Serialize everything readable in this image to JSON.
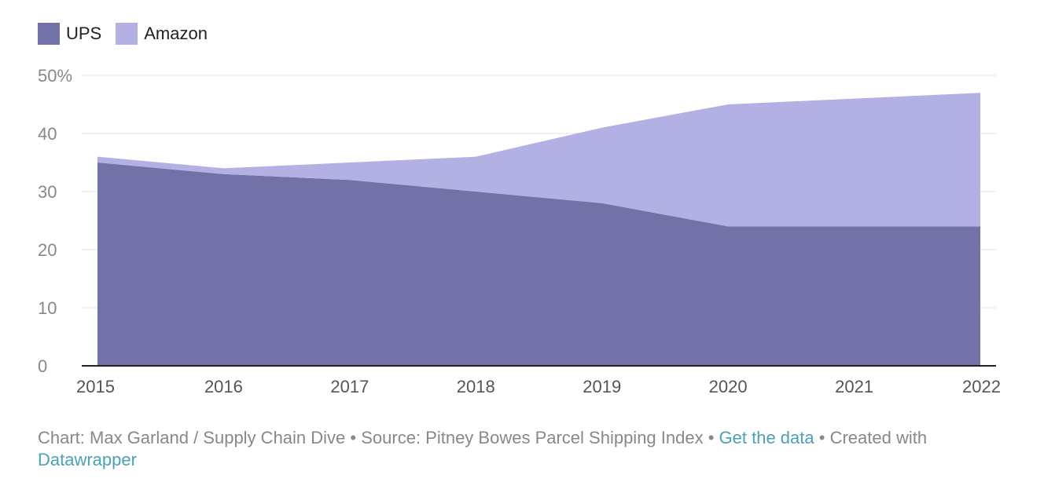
{
  "legend": [
    {
      "label": "UPS",
      "color": "#7272a9"
    },
    {
      "label": "Amazon",
      "color": "#b3b1e3"
    }
  ],
  "chart_data": {
    "type": "area",
    "stacked": true,
    "x": [
      "2015",
      "2016",
      "2017",
      "2018",
      "2019",
      "2020",
      "2021",
      "2022"
    ],
    "series": [
      {
        "name": "UPS",
        "color": "#7272a9",
        "values": [
          35,
          33,
          32,
          30,
          28,
          24,
          24,
          24
        ]
      },
      {
        "name": "Amazon",
        "color": "#b3b1e3",
        "values": [
          1,
          1,
          3,
          6,
          13,
          21,
          22,
          23
        ]
      }
    ],
    "ylim": [
      0,
      50
    ],
    "yticks": [
      "0",
      "10",
      "20",
      "30",
      "40",
      "50%"
    ],
    "grid": true,
    "legend_position": "top-left"
  },
  "footer": {
    "credit": "Chart: Max Garland / Supply Chain Dive",
    "separator": " • ",
    "source": "Source: Pitney Bowes Parcel Shipping Index",
    "get_data": "Get the data",
    "created_with": "Created with",
    "tool": "Datawrapper"
  }
}
